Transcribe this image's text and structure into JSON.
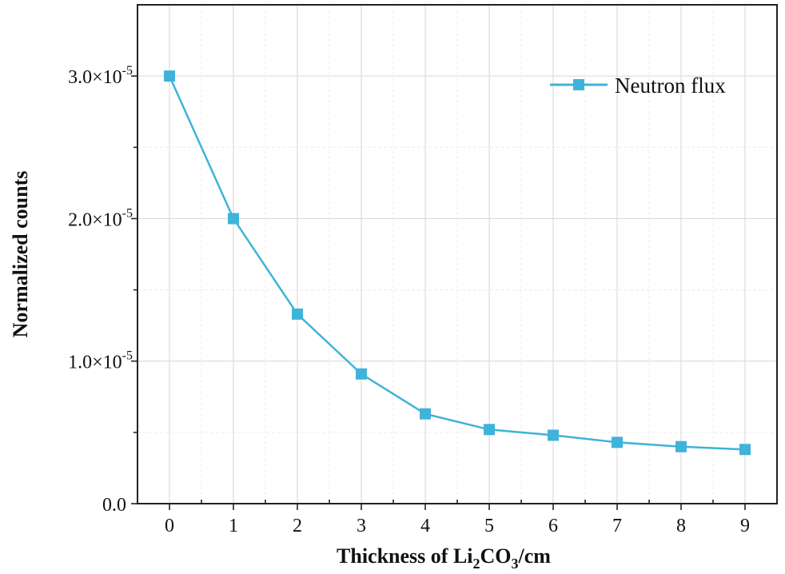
{
  "chart_data": {
    "type": "line",
    "xlabel": "Thickness of Li2CO3/cm",
    "xlabel_parts": {
      "a": "Thickness of Li",
      "sub1": "2",
      "b": "CO",
      "sub2": "3",
      "c": "/cm"
    },
    "ylabel": "Normalized counts",
    "x": [
      0,
      1,
      2,
      3,
      4,
      5,
      6,
      7,
      8,
      9
    ],
    "series": [
      {
        "name": "Neutron flux",
        "color": "#3fb3d9",
        "marker": "square",
        "values": [
          3e-05,
          2e-05,
          1.33e-05,
          9.1e-06,
          6.3e-06,
          5.2e-06,
          4.8e-06,
          4.3e-06,
          4e-06,
          3.8e-06
        ]
      }
    ],
    "xlim": [
      -0.5,
      9.5
    ],
    "ylim": [
      0,
      3.5e-05
    ],
    "xticks": [
      "0",
      "1",
      "2",
      "3",
      "4",
      "5",
      "6",
      "7",
      "8",
      "9"
    ],
    "yticks": [
      {
        "value": 0,
        "mantissa": "0.0",
        "exp": ""
      },
      {
        "value": 1e-05,
        "mantissa": "1.0×10",
        "exp": "-5"
      },
      {
        "value": 2e-05,
        "mantissa": "2.0×10",
        "exp": "-5"
      },
      {
        "value": 3e-05,
        "mantissa": "3.0×10",
        "exp": "-5"
      }
    ],
    "grid": true,
    "legend_position": "top-right"
  }
}
